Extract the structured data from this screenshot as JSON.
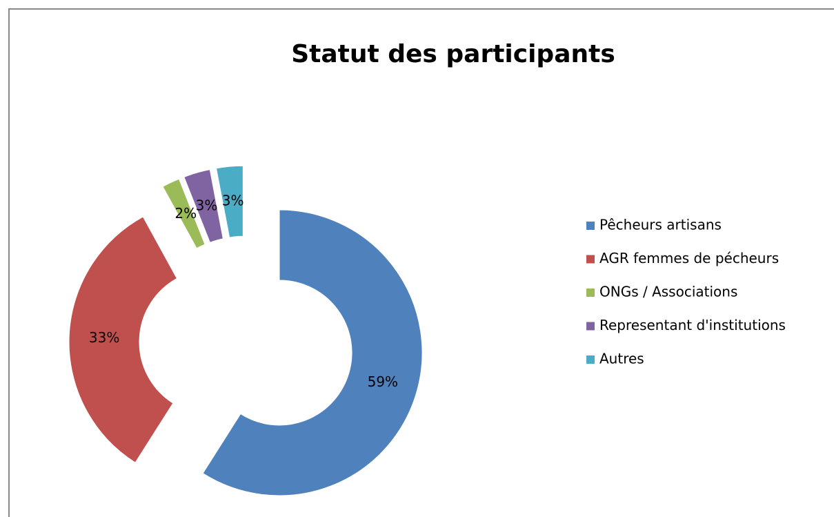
{
  "chart_data": {
    "type": "pie",
    "donut": true,
    "title": "Statut des participants",
    "categories": [
      "Pêcheurs artisans",
      "AGR femmes de pécheurs",
      "ONGs / Associations",
      "Representant d'institutions",
      "Autres"
    ],
    "values": [
      59,
      33,
      2,
      3,
      3
    ],
    "value_labels": [
      "59%",
      "33%",
      "2%",
      "3%",
      "3%"
    ],
    "colors": [
      "#4f81bd",
      "#c0504d",
      "#9bbb59",
      "#8064a2",
      "#4bacc6"
    ],
    "legend": "right"
  }
}
